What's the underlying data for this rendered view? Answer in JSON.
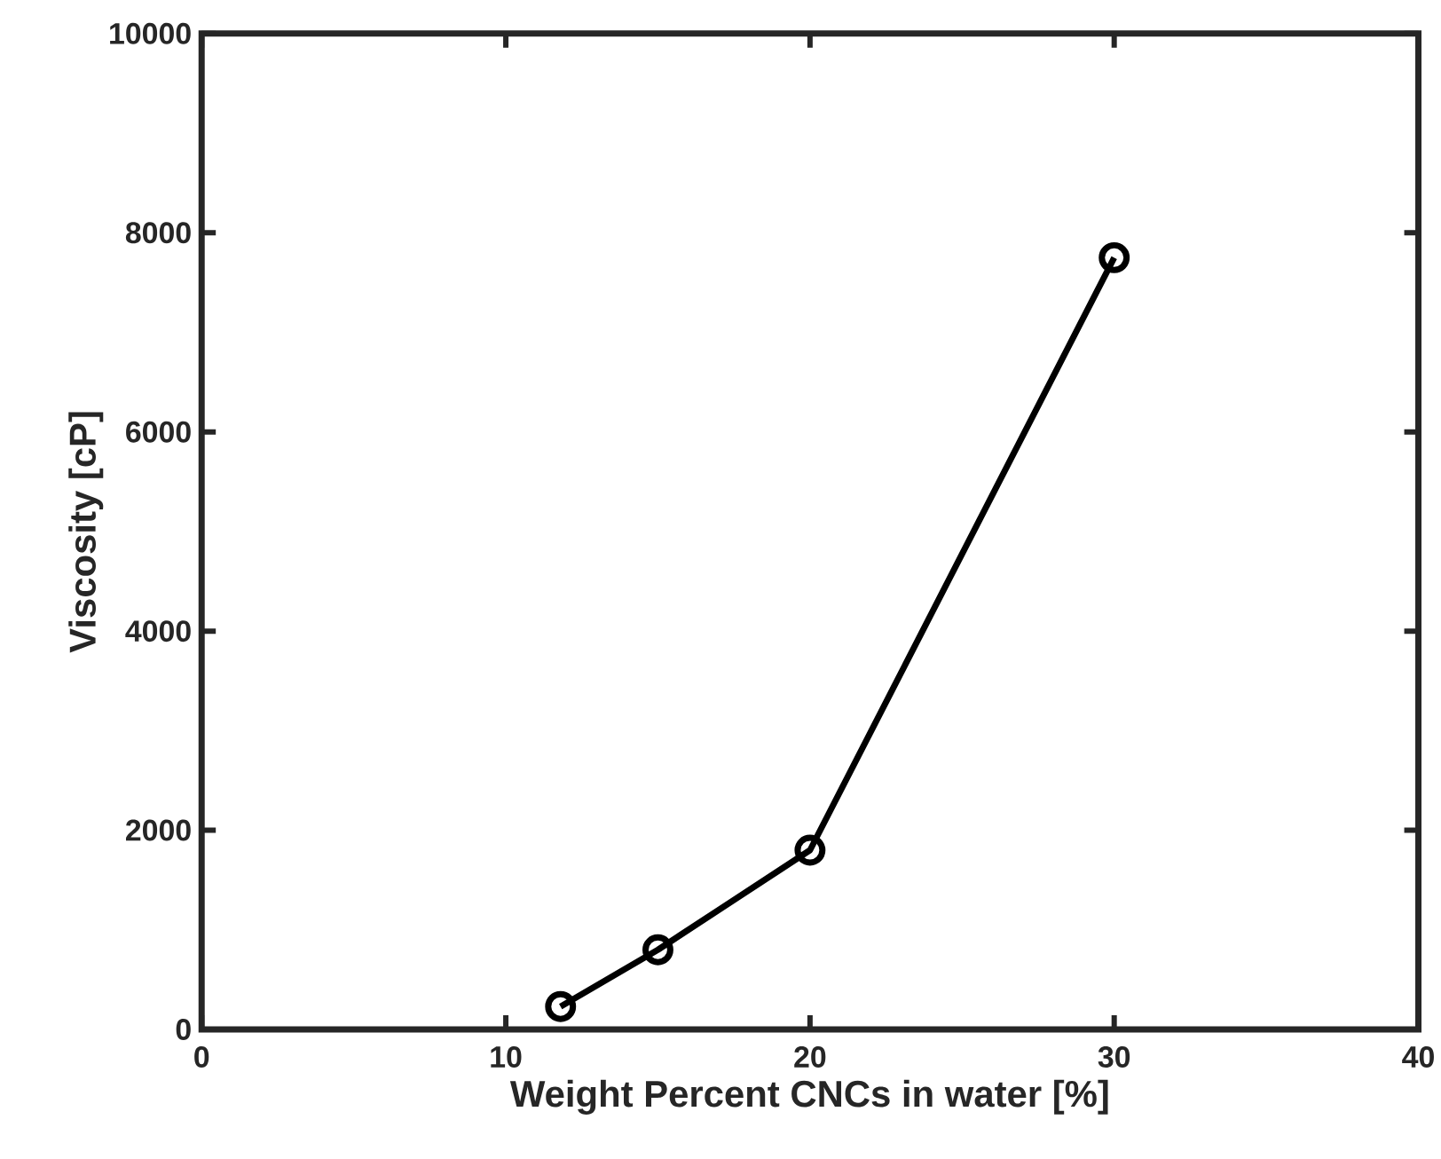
{
  "chart_data": {
    "type": "line",
    "xlabel": "Weight Percent CNCs in water [%]",
    "ylabel": "Viscosity [cP]",
    "x": [
      11.8,
      15,
      20,
      30
    ],
    "series": [
      {
        "color": "#000000",
        "values": [
          230,
          800,
          1800,
          7750
        ]
      }
    ],
    "xlim": [
      0,
      40
    ],
    "xticks": [
      0,
      10,
      20,
      30,
      40
    ],
    "ylim": [
      0,
      10000
    ],
    "yticks": [
      0,
      2000,
      4000,
      6000,
      8000,
      10000
    ],
    "marker": "circle",
    "line_style": "solid"
  }
}
